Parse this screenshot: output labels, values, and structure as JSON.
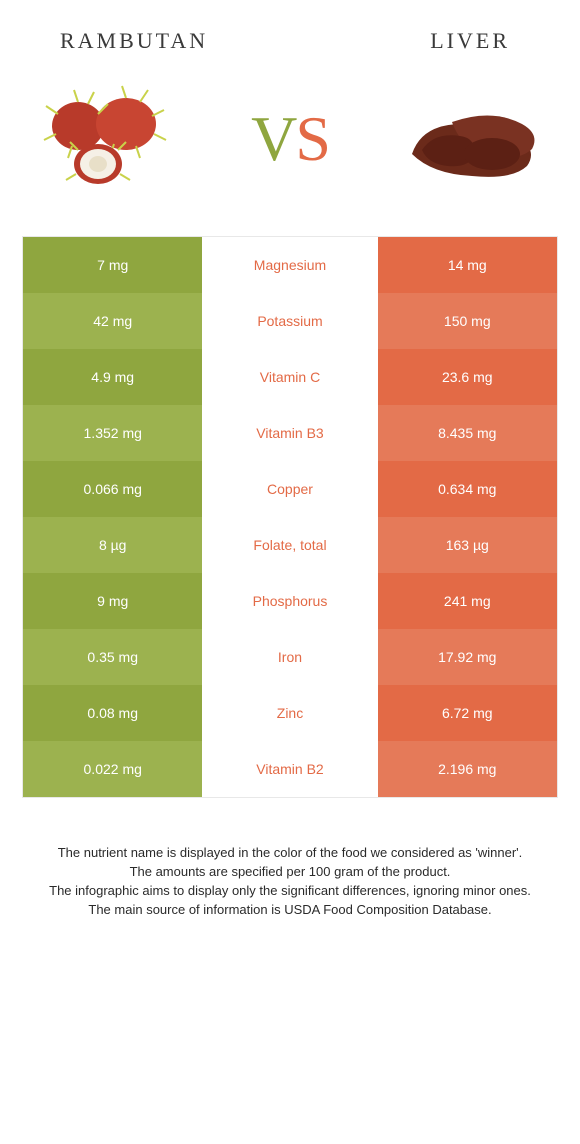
{
  "header": {
    "left": "RAMBUTAN",
    "right": "LIVER"
  },
  "colors": {
    "green_a": "#8fa63f",
    "green_b": "#9cb24f",
    "orange_a": "#e36a46",
    "orange_b": "#e57a59",
    "text_dark": "#3a3a3a",
    "white": "#ffffff"
  },
  "comparison": {
    "rows": [
      {
        "left": "7 mg",
        "mid": "Magnesium",
        "right": "14 mg",
        "winner": "right"
      },
      {
        "left": "42 mg",
        "mid": "Potassium",
        "right": "150 mg",
        "winner": "right"
      },
      {
        "left": "4.9 mg",
        "mid": "Vitamin C",
        "right": "23.6 mg",
        "winner": "right"
      },
      {
        "left": "1.352 mg",
        "mid": "Vitamin B3",
        "right": "8.435 mg",
        "winner": "right"
      },
      {
        "left": "0.066 mg",
        "mid": "Copper",
        "right": "0.634 mg",
        "winner": "right"
      },
      {
        "left": "8 µg",
        "mid": "Folate, total",
        "right": "163 µg",
        "winner": "right"
      },
      {
        "left": "9 mg",
        "mid": "Phosphorus",
        "right": "241 mg",
        "winner": "right"
      },
      {
        "left": "0.35 mg",
        "mid": "Iron",
        "right": "17.92 mg",
        "winner": "right"
      },
      {
        "left": "0.08 mg",
        "mid": "Zinc",
        "right": "6.72 mg",
        "winner": "right"
      },
      {
        "left": "0.022 mg",
        "mid": "Vitamin B2",
        "right": "2.196 mg",
        "winner": "right"
      }
    ]
  },
  "footer": {
    "line1": "The nutrient name is displayed in the color of the food we considered as 'winner'.",
    "line2": "The amounts are specified per 100 gram of the product.",
    "line3": "The infographic aims to display only the significant differences, ignoring minor ones.",
    "line4": "The main source of information is USDA Food Composition Database."
  }
}
